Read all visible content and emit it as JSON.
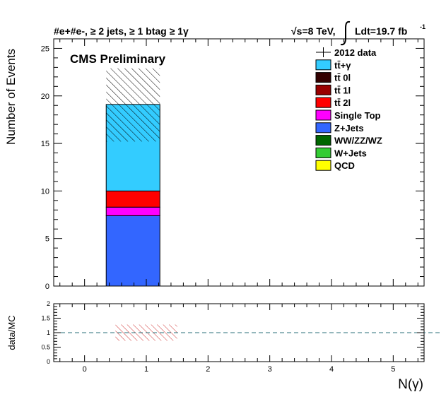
{
  "chart_data": {
    "type": "bar",
    "header_left": "#e+#e-, ≥ 2 jets, ≥ 1 btag ≥ 1γ",
    "header_right_energy": "√s=8 TeV,",
    "header_right_lumi": "Ldt=19.7 fb",
    "header_right_lumi_sup": "-1",
    "label": "CMS Preliminary",
    "ylabel": "Number of Events",
    "xlabel": "N(γ)",
    "ratio_ylabel": "data/MC",
    "xlim": [
      -0.5,
      5.5
    ],
    "ylim": [
      0,
      26
    ],
    "x_ticks": [
      "0",
      "1",
      "2",
      "3",
      "4",
      "5"
    ],
    "y_ticks": [
      "0",
      "5",
      "10",
      "15",
      "20",
      "25"
    ],
    "ratio_ylim": [
      0,
      2
    ],
    "ratio_ticks": [
      "0",
      "0.5",
      "1",
      "1.5",
      "2"
    ],
    "bins": [
      {
        "x_low": 0.35,
        "x_high": 1.22,
        "stack": [
          {
            "name": "Z+Jets",
            "value": 7.4
          },
          {
            "name": "Single Top",
            "value": 0.9
          },
          {
            "name": "tt̄ 2l",
            "value": 1.7
          },
          {
            "name": "tt̄+γ",
            "value": 9.1
          }
        ],
        "total": 19.1,
        "uncertainty_band": [
          15.2,
          22.9
        ]
      }
    ],
    "ratio_band": {
      "x_low": 0.5,
      "x_high": 1.5,
      "y_low": 0.72,
      "y_high": 1.28
    },
    "ratio_reference": 1.0,
    "legend": [
      {
        "name": "2012 data",
        "color": "#000000",
        "marker": "cross"
      },
      {
        "name": "tt̄+γ",
        "color": "#33ccff"
      },
      {
        "name": "tt̄ 0l",
        "color": "#330000"
      },
      {
        "name": "tt̄ 1l",
        "color": "#990000"
      },
      {
        "name": "tt̄ 2l",
        "color": "#ff0000"
      },
      {
        "name": "Single Top",
        "color": "#ff00ff"
      },
      {
        "name": "Z+Jets",
        "color": "#3366ff"
      },
      {
        "name": "WW/ZZ/WZ",
        "color": "#006600"
      },
      {
        "name": "W+Jets",
        "color": "#33cc33"
      },
      {
        "name": "QCD",
        "color": "#ffff00"
      }
    ],
    "legend_position": "top-right"
  }
}
